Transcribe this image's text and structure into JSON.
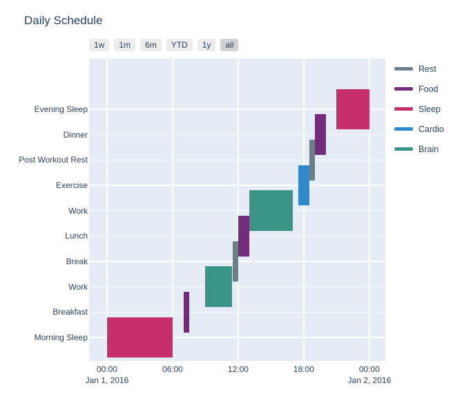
{
  "title": "Daily Schedule",
  "range_selector": {
    "buttons": [
      "1w",
      "1m",
      "6m",
      "YTD",
      "1y",
      "all"
    ],
    "active": "all"
  },
  "chart_data": {
    "type": "gantt",
    "title": "Daily Schedule",
    "x_axis": {
      "range_hours": [
        -1.64,
        25.46
      ],
      "ticks": [
        {
          "hour": 0,
          "label": "00:00",
          "date_label": "Jan 1, 2016"
        },
        {
          "hour": 6,
          "label": "06:00"
        },
        {
          "hour": 12,
          "label": "12:00"
        },
        {
          "hour": 18,
          "label": "18:00"
        },
        {
          "hour": 24,
          "label": "00:00",
          "date_label": "Jan 2, 2016"
        }
      ]
    },
    "y_axis": {
      "rows_top_to_bottom": [
        "Evening Sleep",
        "Dinner",
        "Post Workout Rest",
        "Exercise",
        "Work",
        "Lunch",
        "Break",
        "Work",
        "Breakfast",
        "Morning Sleep"
      ],
      "range_rows": [
        -0.93,
        10.99
      ]
    },
    "resources": [
      {
        "name": "Rest",
        "color": "#6B7F87"
      },
      {
        "name": "Food",
        "color": "#722C79"
      },
      {
        "name": "Sleep",
        "color": "#C62F69"
      },
      {
        "name": "Cardio",
        "color": "#2E89CD"
      },
      {
        "name": "Brain",
        "color": "#3A9588"
      }
    ],
    "bar_half_width": 0.8,
    "tasks": [
      {
        "task": "Morning Sleep",
        "row": 9,
        "start": "00:00",
        "finish": "06:00",
        "resource": "Sleep"
      },
      {
        "task": "Breakfast",
        "row": 8,
        "start": "07:00",
        "finish": "07:30",
        "resource": "Food"
      },
      {
        "task": "Work",
        "row": 7,
        "start": "09:00",
        "finish": "11:25",
        "resource": "Brain"
      },
      {
        "task": "Break",
        "row": 6,
        "start": "11:30",
        "finish": "12:00",
        "resource": "Rest"
      },
      {
        "task": "Lunch",
        "row": 5,
        "start": "12:00",
        "finish": "13:00",
        "resource": "Food"
      },
      {
        "task": "Work",
        "row": 4,
        "start": "13:00",
        "finish": "17:00",
        "resource": "Brain"
      },
      {
        "task": "Exercise",
        "row": 3,
        "start": "17:30",
        "finish": "18:30",
        "resource": "Cardio"
      },
      {
        "task": "Post Workout Rest",
        "row": 2,
        "start": "18:30",
        "finish": "19:00",
        "resource": "Rest"
      },
      {
        "task": "Dinner",
        "row": 1,
        "start": "19:00",
        "finish": "20:00",
        "resource": "Food"
      },
      {
        "task": "Evening Sleep",
        "row": 0,
        "start": "21:00",
        "finish": "23:59",
        "resource": "Sleep"
      }
    ],
    "legend_position": "right",
    "grid": true,
    "colors": {
      "plot_bg": "#E5ECF6",
      "grid": "#FFFFFF",
      "text": "#2A3F5F"
    }
  }
}
